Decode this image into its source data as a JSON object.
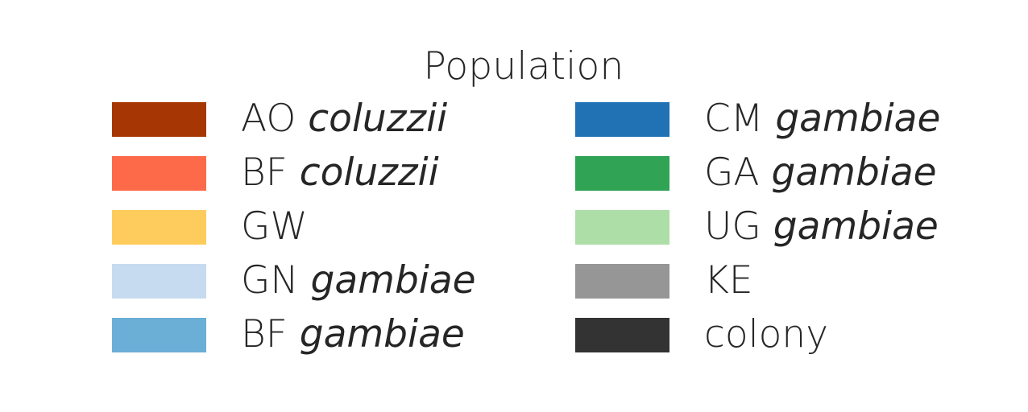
{
  "chart_data": {
    "type": "legend",
    "title": "Population",
    "columns": 2,
    "entries": [
      {
        "code": "AO",
        "species": "coluzzii",
        "color": "#a63603"
      },
      {
        "code": "BF",
        "species": "coluzzii",
        "color": "#fd6a4a"
      },
      {
        "code": "GW",
        "species": "",
        "color": "#fecc5c"
      },
      {
        "code": "GN",
        "species": "gambiae",
        "color": "#c6dbef"
      },
      {
        "code": "BF",
        "species": "gambiae",
        "color": "#6baed6"
      },
      {
        "code": "CM",
        "species": "gambiae",
        "color": "#2171b5"
      },
      {
        "code": "GA",
        "species": "gambiae",
        "color": "#31a354"
      },
      {
        "code": "UG",
        "species": "gambiae",
        "color": "#addea7"
      },
      {
        "code": "KE",
        "species": "",
        "color": "#969696"
      },
      {
        "code": "colony",
        "species": "",
        "color": "#333333"
      }
    ]
  }
}
